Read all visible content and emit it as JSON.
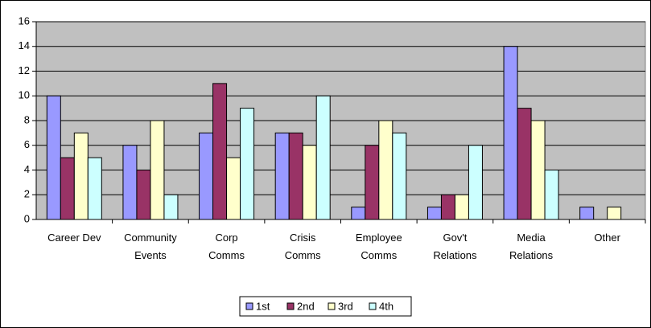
{
  "chart_data": {
    "type": "bar",
    "categories": [
      "Career Dev",
      "Community\nEvents",
      "Corp\nComms",
      "Crisis\nComms",
      "Employee\nComms",
      "Gov't\nRelations",
      "Media\nRelations",
      "Other"
    ],
    "series": [
      {
        "name": "1st",
        "color": "#9999ff",
        "values": [
          10,
          6,
          7,
          7,
          1,
          1,
          14,
          1
        ]
      },
      {
        "name": "2nd",
        "color": "#993366",
        "values": [
          5,
          4,
          11,
          7,
          6,
          2,
          9,
          0
        ]
      },
      {
        "name": "3rd",
        "color": "#ffffcc",
        "values": [
          7,
          8,
          5,
          6,
          8,
          2,
          8,
          1
        ]
      },
      {
        "name": "4th",
        "color": "#ccffff",
        "values": [
          5,
          2,
          9,
          10,
          7,
          6,
          4,
          0
        ]
      }
    ],
    "ylim": [
      0,
      16
    ],
    "yticks": [
      0,
      2,
      4,
      6,
      8,
      10,
      12,
      14,
      16
    ],
    "grid": true,
    "legend": "bottom"
  }
}
